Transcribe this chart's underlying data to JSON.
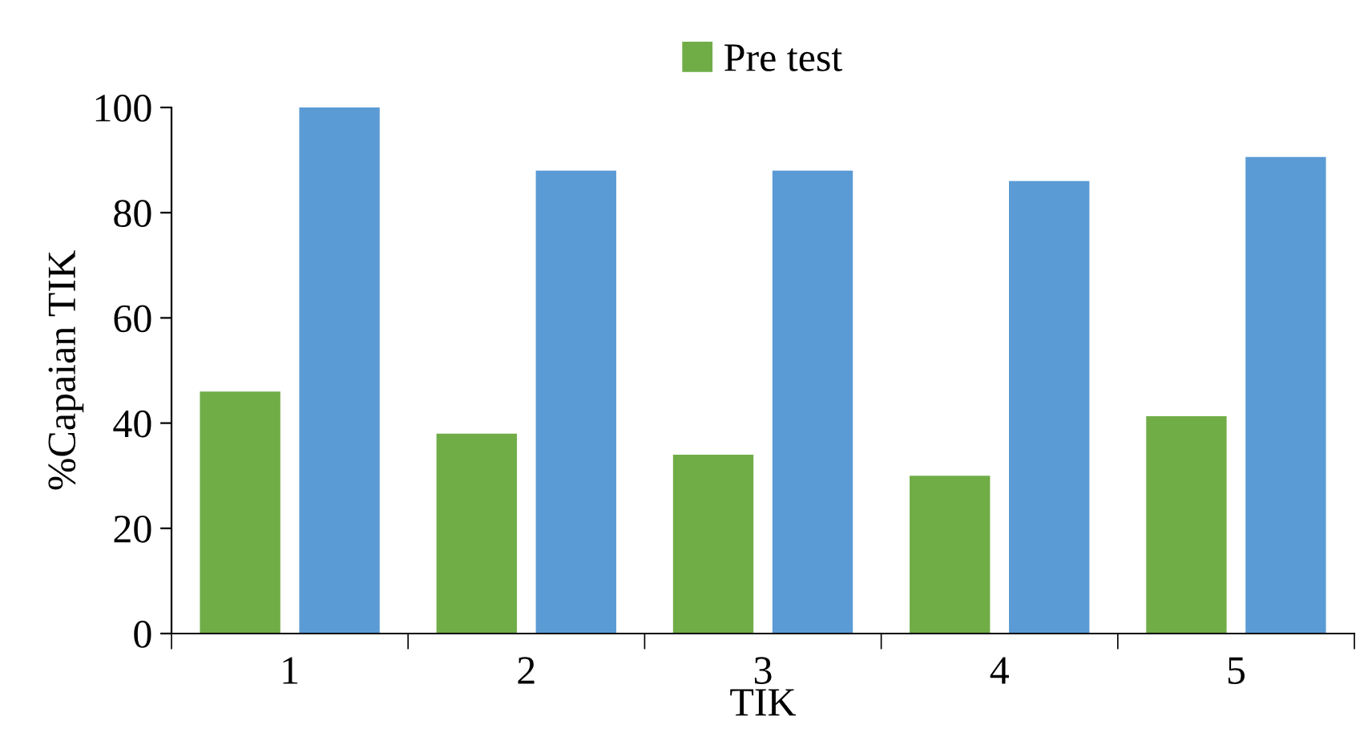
{
  "chart_data": {
    "type": "bar",
    "categories": [
      "1",
      "2",
      "3",
      "4",
      "5"
    ],
    "series": [
      {
        "name": "Pre test",
        "color": "#70ad47",
        "values": [
          46,
          38,
          34,
          30,
          41.3
        ]
      },
      {
        "color": "#5b9bd5",
        "values": [
          100,
          88,
          88,
          86,
          90.6
        ]
      }
    ],
    "xlabel": "TIK",
    "ylabel": "%Capaian TIK",
    "ylim": [
      0,
      100
    ],
    "yticks": [
      0,
      20,
      40,
      60,
      80,
      100
    ],
    "grid": false,
    "legend": "top"
  }
}
